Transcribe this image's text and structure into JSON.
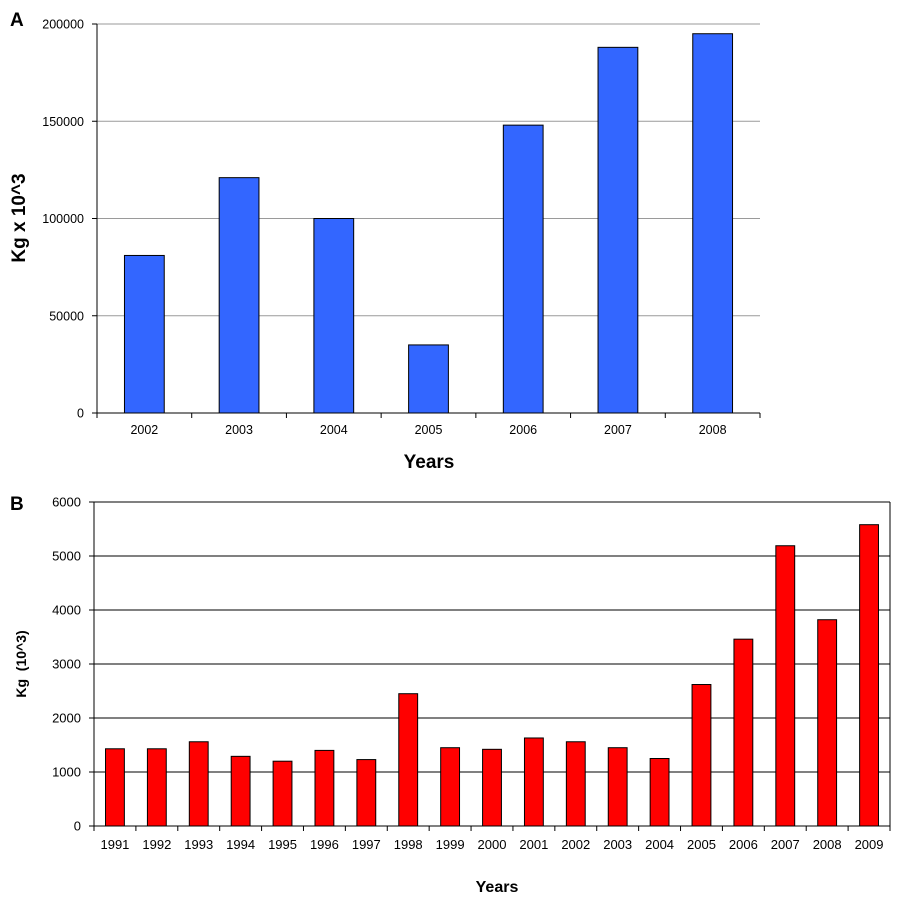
{
  "chart_data": [
    {
      "type": "bar",
      "panel_label": "A",
      "categories": [
        "2002",
        "2003",
        "2004",
        "2005",
        "2006",
        "2007",
        "2008"
      ],
      "values": [
        81000,
        121000,
        100000,
        35000,
        148000,
        188000,
        195000
      ],
      "xlabel": "Years",
      "ylabel": "Kg x 10^3",
      "ylim": [
        0,
        200000
      ],
      "yticks": [
        0,
        50000,
        100000,
        150000,
        200000
      ],
      "ytick_labels": [
        "0",
        "50000",
        "100000",
        "150000",
        "200000"
      ],
      "grid": true,
      "bar_color": "#3366ff"
    },
    {
      "type": "bar",
      "panel_label": "B",
      "categories": [
        "1991",
        "1992",
        "1993",
        "1994",
        "1995",
        "1996",
        "1997",
        "1998",
        "1999",
        "2000",
        "2001",
        "2002",
        "2003",
        "2004",
        "2005",
        "2006",
        "2007",
        "2008",
        "2009"
      ],
      "values": [
        1430,
        1430,
        1560,
        1290,
        1200,
        1400,
        1230,
        2450,
        1450,
        1420,
        1630,
        1560,
        1450,
        1250,
        2620,
        3460,
        5190,
        3820,
        5580
      ],
      "xlabel": "Years",
      "ylabel": "Kg  (10^3)",
      "ylim": [
        0,
        6000
      ],
      "yticks": [
        0,
        1000,
        2000,
        3000,
        4000,
        5000,
        6000
      ],
      "ytick_labels": [
        "0",
        "1000",
        "2000",
        "3000",
        "4000",
        "5000",
        "6000"
      ],
      "grid": true,
      "bar_color": "#ff0000"
    }
  ]
}
